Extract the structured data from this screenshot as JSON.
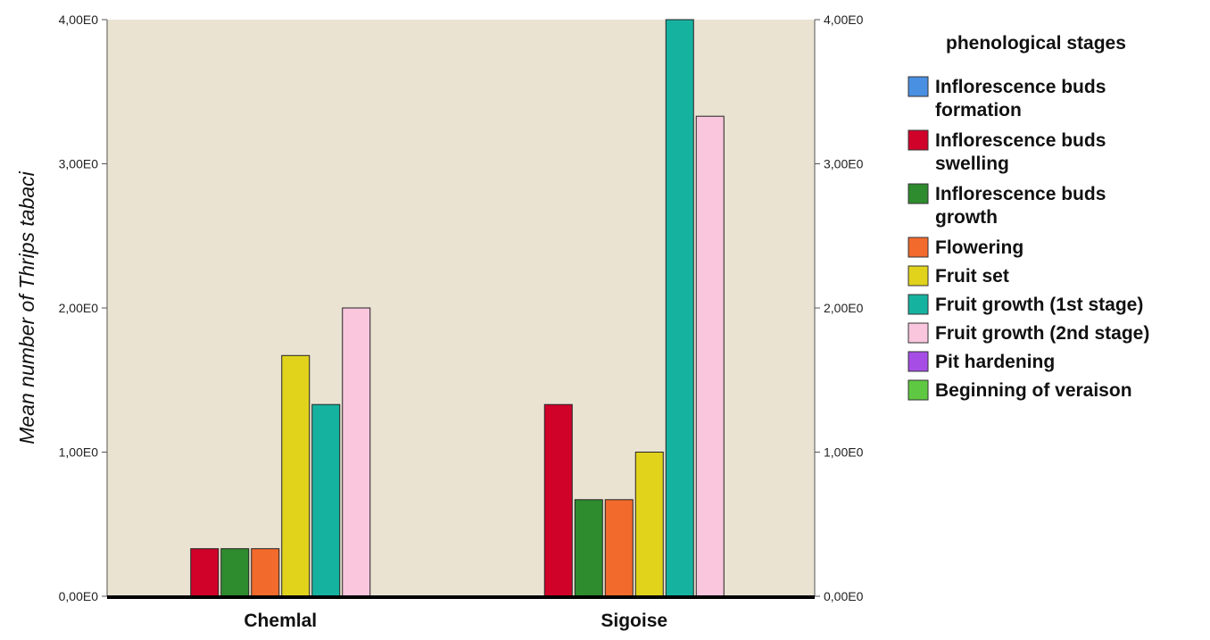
{
  "chart_data": {
    "type": "bar",
    "categories": [
      "Chemlal",
      "Sigoise"
    ],
    "series": [
      {
        "name": "Inflorescence buds formation",
        "color": "#4A90E2",
        "values": [
          0,
          0
        ]
      },
      {
        "name": "Inflorescence buds swelling",
        "color": "#D0022A",
        "values": [
          0.33,
          1.33
        ]
      },
      {
        "name": "Inflorescence buds growth",
        "color": "#2E8B2E",
        "values": [
          0.33,
          0.67
        ]
      },
      {
        "name": "Flowering",
        "color": "#F26A2C",
        "values": [
          0.33,
          0.67
        ]
      },
      {
        "name": "Fruit set",
        "color": "#E1D31C",
        "values": [
          1.67,
          1.0
        ]
      },
      {
        "name": "Fruit growth (1st stage)",
        "color": "#16B2A0",
        "values": [
          1.33,
          4.0
        ]
      },
      {
        "name": "Fruit growth (2nd  stage)",
        "color": "#F9C6DE",
        "values": [
          2.0,
          3.33
        ]
      },
      {
        "name": "Pit hardening",
        "color": "#A64DE6",
        "values": [
          0,
          0
        ]
      },
      {
        "name": "Beginning of veraison",
        "color": "#5FC843",
        "values": [
          0,
          0
        ]
      }
    ],
    "ylabel_prefix": "Mean number of ",
    "ylabel_italic": "Thrips tabaci",
    "ylim": [
      0,
      4
    ],
    "yticks": [
      0,
      1,
      2,
      3,
      4
    ],
    "ytick_labels": [
      "0,00E0",
      "1,00E0",
      "2,00E0",
      "3,00E0",
      "4,00E0"
    ],
    "right_axis": true,
    "grid": false,
    "legend_title": "phenological stages",
    "legend_position": "right",
    "plot_background": "#EAE3D2"
  }
}
